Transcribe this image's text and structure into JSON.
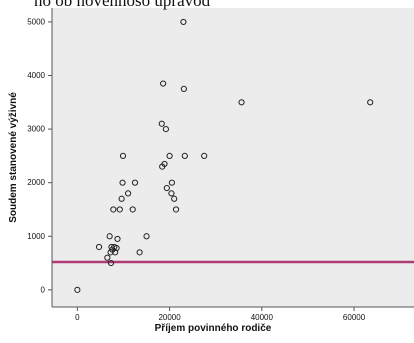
{
  "header": {
    "cropped_text": "no ob novennoso upravod"
  },
  "chart_data": {
    "type": "scatter",
    "title": "",
    "xlabel": "Příjem povinného rodiče",
    "ylabel": "Soudem stanovené výživné",
    "xlim": [
      -5500,
      73000
    ],
    "ylim": [
      -320,
      5260
    ],
    "x_ticks": [
      0,
      20000,
      40000,
      60000
    ],
    "y_ticks": [
      0,
      1000,
      2000,
      3000,
      4000,
      5000
    ],
    "grid": false,
    "background": "#ececec",
    "marker_color": "#222222",
    "reference_line": {
      "y": 520,
      "color": "#b03a76"
    },
    "points": [
      {
        "x": 0,
        "y": 0
      },
      {
        "x": 4700,
        "y": 800
      },
      {
        "x": 6500,
        "y": 600
      },
      {
        "x": 7000,
        "y": 1000
      },
      {
        "x": 7200,
        "y": 700
      },
      {
        "x": 7300,
        "y": 500
      },
      {
        "x": 7400,
        "y": 800
      },
      {
        "x": 7600,
        "y": 750
      },
      {
        "x": 7800,
        "y": 1500
      },
      {
        "x": 8000,
        "y": 800
      },
      {
        "x": 8200,
        "y": 700
      },
      {
        "x": 8500,
        "y": 780
      },
      {
        "x": 8700,
        "y": 950
      },
      {
        "x": 9200,
        "y": 1500
      },
      {
        "x": 9600,
        "y": 1700
      },
      {
        "x": 9800,
        "y": 2000
      },
      {
        "x": 9900,
        "y": 2500
      },
      {
        "x": 11000,
        "y": 1800
      },
      {
        "x": 12000,
        "y": 1500
      },
      {
        "x": 12500,
        "y": 2000
      },
      {
        "x": 13500,
        "y": 700
      },
      {
        "x": 15000,
        "y": 1000
      },
      {
        "x": 18300,
        "y": 3100
      },
      {
        "x": 18400,
        "y": 2300
      },
      {
        "x": 18600,
        "y": 3850
      },
      {
        "x": 18900,
        "y": 2350
      },
      {
        "x": 19200,
        "y": 3000
      },
      {
        "x": 19400,
        "y": 1900
      },
      {
        "x": 20000,
        "y": 2500
      },
      {
        "x": 20400,
        "y": 1800
      },
      {
        "x": 20500,
        "y": 2000
      },
      {
        "x": 21000,
        "y": 1700
      },
      {
        "x": 21400,
        "y": 1500
      },
      {
        "x": 23000,
        "y": 5000
      },
      {
        "x": 23100,
        "y": 3750
      },
      {
        "x": 23300,
        "y": 2500
      },
      {
        "x": 27500,
        "y": 2500
      },
      {
        "x": 35600,
        "y": 3500
      },
      {
        "x": 63500,
        "y": 3500
      }
    ]
  }
}
